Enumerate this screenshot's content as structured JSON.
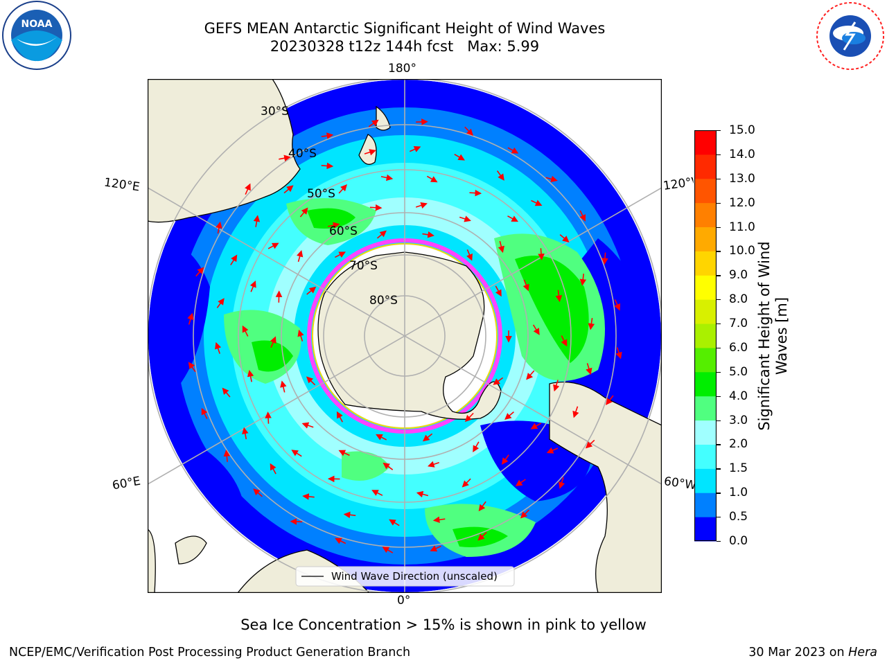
{
  "title": {
    "line1": "GEFS MEAN Antarctic Significant Height of Wind Waves",
    "line2": "20230328 t12z 144h fcst   Max: 5.99"
  },
  "logos": {
    "noaa": {
      "text": "NOAA",
      "ring": "NATIONAL OCEANIC AND ATMOSPHERIC ADMINISTRATION · U.S. DEPARTMENT OF COMMERCE"
    },
    "nws": {
      "ring": "NATIONAL WEATHER SERVICE"
    }
  },
  "map": {
    "projection": "south polar stereographic",
    "graticule_labels": {
      "lon_180": "180°",
      "lon_0": "0°",
      "lon_120E": "120°E",
      "lon_60E": "60°E",
      "lon_120W": "120°W",
      "lon_60W": "60°W",
      "lat_30": "30°S",
      "lat_40": "40°S",
      "lat_50": "50°S",
      "lat_60": "60°S",
      "lat_70": "70°S",
      "lat_80": "80°S"
    },
    "legend_label": "Wind Wave Direction (unscaled)",
    "colors": {
      "land": "#efedda",
      "ocean_background": "#0000ff",
      "arrow": "#ff0000",
      "ice_edge": "#ff44ff",
      "grid": "#b0b0b0"
    }
  },
  "colorbar": {
    "label": "Significant Height of Wind Waves [m]",
    "ticks": [
      "0.0",
      "0.5",
      "1.0",
      "1.5",
      "2.0",
      "3.0",
      "4.0",
      "5.0",
      "6.0",
      "7.0",
      "8.0",
      "9.0",
      "10.0",
      "11.0",
      "12.0",
      "13.0",
      "14.0",
      "15.0"
    ],
    "colors": [
      "#0000ff",
      "#0080ff",
      "#00e5ff",
      "#44ffff",
      "#a0ffff",
      "#50ff80",
      "#00ee00",
      "#55ee00",
      "#aaf000",
      "#d8f000",
      "#ffff00",
      "#ffd500",
      "#ffaa00",
      "#ff8000",
      "#ff5500",
      "#ff2a00",
      "#ff0000"
    ]
  },
  "note": "Sea Ice Concentration > 15% is shown in pink to yellow",
  "footer": {
    "left": "NCEP/EMC/Verification Post Processing Product Generation Branch",
    "right_date": "30 Mar 2023 on ",
    "right_machine": "Hera"
  }
}
